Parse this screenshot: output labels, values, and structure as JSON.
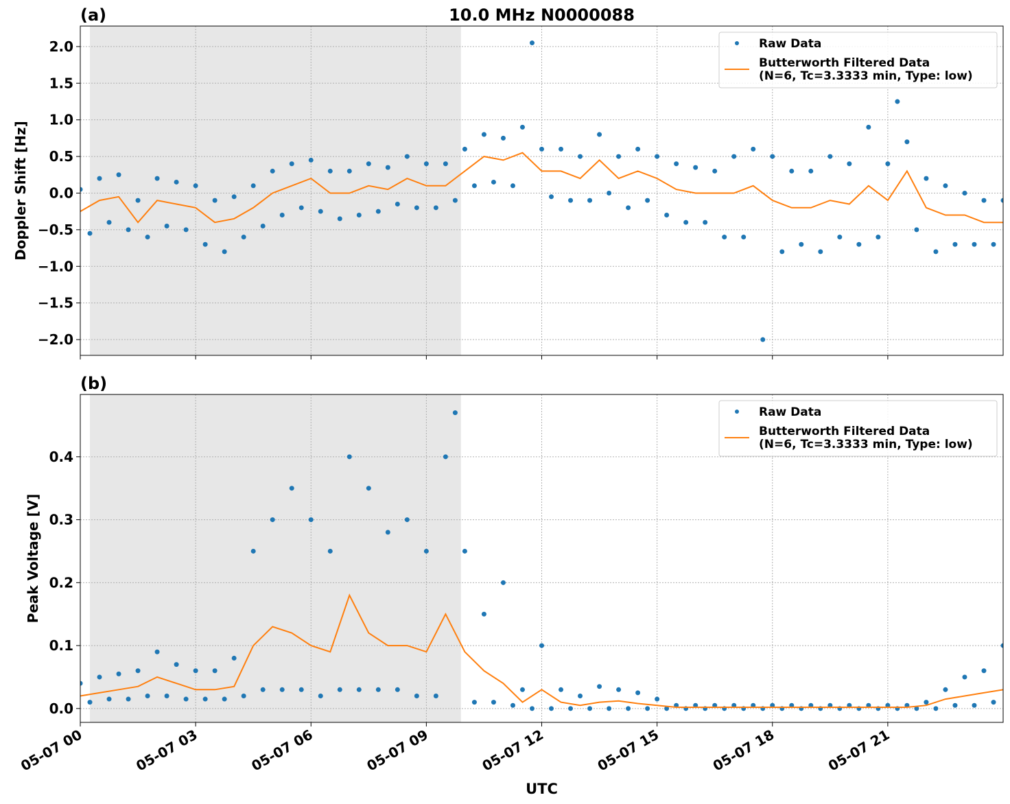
{
  "chart_data": [
    {
      "type": "scatter_line",
      "title": "10.0 MHz N0000088",
      "panel_label": "(a)",
      "ylabel": "Doppler Shift [Hz]",
      "xlim": [
        0,
        24
      ],
      "ylim": [
        -2.215,
        2.28
      ],
      "grid": true,
      "legend": "upper right",
      "shade": [
        0.25,
        9.9
      ],
      "xticks": [
        0,
        3,
        6,
        9,
        12,
        15,
        18,
        21
      ],
      "yticks": [
        {
          "value": -2,
          "label": "−2.0"
        },
        {
          "value": -1.5,
          "label": "−1.5"
        },
        {
          "value": -1,
          "label": "−1.0"
        },
        {
          "value": -0.5,
          "label": "−0.5"
        },
        {
          "value": 0,
          "label": "0.0"
        },
        0.5,
        {
          "value": 1,
          "label": "1.0"
        },
        1.5,
        {
          "value": 2,
          "label": "2.0"
        }
      ],
      "series": [
        {
          "name": "Raw Data",
          "color": "#1f77b4",
          "style": "points",
          "x": [
            0,
            0.25,
            0.5,
            0.75,
            1,
            1.25,
            1.5,
            1.75,
            2,
            2.25,
            2.5,
            2.75,
            3,
            3.25,
            3.5,
            3.75,
            4,
            4.25,
            4.5,
            4.75,
            5,
            5.25,
            5.5,
            5.75,
            6,
            6.25,
            6.5,
            6.75,
            7,
            7.25,
            7.5,
            7.75,
            8,
            8.25,
            8.5,
            8.75,
            9,
            9.25,
            9.5,
            9.75,
            10,
            10.25,
            10.5,
            10.75,
            11,
            11.25,
            11.5,
            11.75,
            12,
            12.25,
            12.5,
            12.75,
            13,
            13.25,
            13.5,
            13.75,
            14,
            14.25,
            14.5,
            14.75,
            15,
            15.25,
            15.5,
            15.75,
            16,
            16.25,
            16.5,
            16.75,
            17,
            17.25,
            17.5,
            17.75,
            18,
            18.25,
            18.5,
            18.75,
            19,
            19.25,
            19.5,
            19.75,
            20,
            20.25,
            20.5,
            20.75,
            21,
            21.25,
            21.5,
            21.75,
            22,
            22.25,
            22.5,
            22.75,
            23,
            23.25,
            23.5,
            23.75,
            24
          ],
          "values": [
            0.05,
            -0.55,
            0.2,
            -0.4,
            0.25,
            -0.5,
            -0.1,
            -0.6,
            0.2,
            -0.45,
            0.15,
            -0.5,
            0.1,
            -0.7,
            -0.1,
            -0.8,
            -0.05,
            -0.6,
            0.1,
            -0.45,
            0.3,
            -0.3,
            0.4,
            -0.2,
            0.45,
            -0.25,
            0.3,
            -0.35,
            0.3,
            -0.3,
            0.4,
            -0.25,
            0.35,
            -0.15,
            0.5,
            -0.2,
            0.4,
            -0.2,
            0.4,
            -0.1,
            0.6,
            0.1,
            0.8,
            0.15,
            0.75,
            0.1,
            0.9,
            2.05,
            0.6,
            -0.05,
            0.6,
            -0.1,
            0.5,
            -0.1,
            0.8,
            0,
            0.5,
            -0.2,
            0.6,
            -0.1,
            0.5,
            -0.3,
            0.4,
            -0.4,
            0.35,
            -0.4,
            0.3,
            -0.6,
            0.5,
            -0.6,
            0.6,
            -2,
            0.5,
            -0.8,
            0.3,
            -0.7,
            0.3,
            -0.8,
            0.5,
            -0.6,
            0.4,
            -0.7,
            0.9,
            -0.6,
            0.4,
            1.25,
            0.7,
            -0.5,
            0.2,
            -0.8,
            0.1,
            -0.7,
            0,
            -0.7,
            -0.1,
            -0.7,
            -0.1
          ]
        },
        {
          "name": "Butterworth Filtered Data\n(N=6, Tc=3.3333 min, Type: low)",
          "color": "#ff7f0e",
          "style": "line",
          "x": [
            0,
            0.5,
            1,
            1.5,
            2,
            2.5,
            3,
            3.5,
            4,
            4.5,
            5,
            5.5,
            6,
            6.5,
            7,
            7.5,
            8,
            8.5,
            9,
            9.5,
            10,
            10.5,
            11,
            11.5,
            12,
            12.5,
            13,
            13.5,
            14,
            14.5,
            15,
            15.5,
            16,
            16.5,
            17,
            17.5,
            18,
            18.5,
            19,
            19.5,
            20,
            20.5,
            21,
            21.5,
            22,
            22.5,
            23,
            23.5,
            24
          ],
          "values": [
            -0.25,
            -0.1,
            -0.05,
            -0.4,
            -0.1,
            -0.15,
            -0.2,
            -0.4,
            -0.35,
            -0.2,
            0,
            0.1,
            0.2,
            0,
            0,
            0.1,
            0.05,
            0.2,
            0.1,
            0.1,
            0.3,
            0.5,
            0.45,
            0.55,
            0.3,
            0.3,
            0.2,
            0.45,
            0.2,
            0.3,
            0.2,
            0.05,
            0,
            0,
            0,
            0.1,
            -0.1,
            -0.2,
            -0.2,
            -0.1,
            -0.15,
            0.1,
            -0.1,
            0.3,
            -0.2,
            -0.3,
            -0.3,
            -0.4,
            -0.4
          ]
        }
      ]
    },
    {
      "type": "scatter_line",
      "panel_label": "(b)",
      "ylabel": "Peak Voltage [V]",
      "xlabel": "UTC",
      "xlim": [
        0,
        24
      ],
      "ylim": [
        -0.022,
        0.499
      ],
      "grid": true,
      "legend": "upper right",
      "shade": [
        0.25,
        9.9
      ],
      "xticks": [
        {
          "value": 0,
          "label": "05-07 00"
        },
        {
          "value": 3,
          "label": "05-07 03"
        },
        {
          "value": 6,
          "label": "05-07 06"
        },
        {
          "value": 9,
          "label": "05-07 09"
        },
        {
          "value": 12,
          "label": "05-07 12"
        },
        {
          "value": 15,
          "label": "05-07 15"
        },
        {
          "value": 18,
          "label": "05-07 18"
        },
        {
          "value": 21,
          "label": "05-07 21"
        }
      ],
      "yticks": [
        {
          "value": 0,
          "label": "0.0"
        },
        0.1,
        0.2,
        0.3,
        0.4
      ],
      "series": [
        {
          "name": "Raw Data",
          "color": "#1f77b4",
          "style": "points",
          "x": [
            0,
            0.25,
            0.5,
            0.75,
            1,
            1.25,
            1.5,
            1.75,
            2,
            2.25,
            2.5,
            2.75,
            3,
            3.25,
            3.5,
            3.75,
            4,
            4.25,
            4.5,
            4.75,
            5,
            5.25,
            5.5,
            5.75,
            6,
            6.25,
            6.5,
            6.75,
            7,
            7.25,
            7.5,
            7.75,
            8,
            8.25,
            8.5,
            8.75,
            9,
            9.25,
            9.5,
            9.75,
            10,
            10.25,
            10.5,
            10.75,
            11,
            11.25,
            11.5,
            11.75,
            12,
            12.25,
            12.5,
            12.75,
            13,
            13.25,
            13.5,
            13.75,
            14,
            14.25,
            14.5,
            14.75,
            15,
            15.25,
            15.5,
            15.75,
            16,
            16.25,
            16.5,
            16.75,
            17,
            17.25,
            17.5,
            17.75,
            18,
            18.25,
            18.5,
            18.75,
            19,
            19.25,
            19.5,
            19.75,
            20,
            20.25,
            20.5,
            20.75,
            21,
            21.25,
            21.5,
            21.75,
            22,
            22.25,
            22.5,
            22.75,
            23,
            23.25,
            23.5,
            23.75,
            24
          ],
          "values": [
            0.04,
            0.01,
            0.05,
            0.015,
            0.055,
            0.015,
            0.06,
            0.02,
            0.09,
            0.02,
            0.07,
            0.015,
            0.06,
            0.015,
            0.06,
            0.015,
            0.08,
            0.02,
            0.25,
            0.03,
            0.3,
            0.03,
            0.35,
            0.03,
            0.3,
            0.02,
            0.25,
            0.03,
            0.4,
            0.03,
            0.35,
            0.03,
            0.28,
            0.03,
            0.3,
            0.02,
            0.25,
            0.02,
            0.4,
            0.47,
            0.25,
            0.01,
            0.15,
            0.01,
            0.2,
            0.005,
            0.03,
            0,
            0.1,
            0,
            0.03,
            0,
            0.02,
            0,
            0.035,
            0,
            0.03,
            0,
            0.025,
            0,
            0.015,
            0,
            0.005,
            0,
            0.005,
            0,
            0.005,
            0,
            0.005,
            0,
            0.005,
            0,
            0.005,
            0,
            0.005,
            0,
            0.005,
            0,
            0.005,
            0,
            0.005,
            0,
            0.005,
            0,
            0.005,
            0,
            0.005,
            0,
            0.01,
            0,
            0.03,
            0.005,
            0.05,
            0.005,
            0.06,
            0.01,
            0.1
          ]
        },
        {
          "name": "Butterworth Filtered Data\n(N=6, Tc=3.3333 min, Type: low)",
          "color": "#ff7f0e",
          "style": "line",
          "x": [
            0,
            0.5,
            1,
            1.5,
            2,
            2.5,
            3,
            3.5,
            4,
            4.5,
            5,
            5.5,
            6,
            6.5,
            7,
            7.5,
            8,
            8.5,
            9,
            9.5,
            10,
            10.5,
            11,
            11.5,
            12,
            12.5,
            13,
            13.5,
            14,
            14.5,
            15,
            15.5,
            16,
            16.5,
            17,
            17.5,
            18,
            18.5,
            19,
            19.5,
            20,
            20.5,
            21,
            21.5,
            22,
            22.5,
            23,
            23.5,
            24
          ],
          "values": [
            0.02,
            0.025,
            0.03,
            0.035,
            0.05,
            0.04,
            0.03,
            0.03,
            0.035,
            0.1,
            0.13,
            0.12,
            0.1,
            0.09,
            0.18,
            0.12,
            0.1,
            0.1,
            0.09,
            0.15,
            0.09,
            0.06,
            0.04,
            0.01,
            0.03,
            0.01,
            0.005,
            0.01,
            0.012,
            0.008,
            0.005,
            0.002,
            0.002,
            0.002,
            0.002,
            0.002,
            0.002,
            0.002,
            0.002,
            0.002,
            0.002,
            0.002,
            0.002,
            0.002,
            0.005,
            0.015,
            0.02,
            0.025,
            0.03
          ]
        }
      ]
    }
  ]
}
